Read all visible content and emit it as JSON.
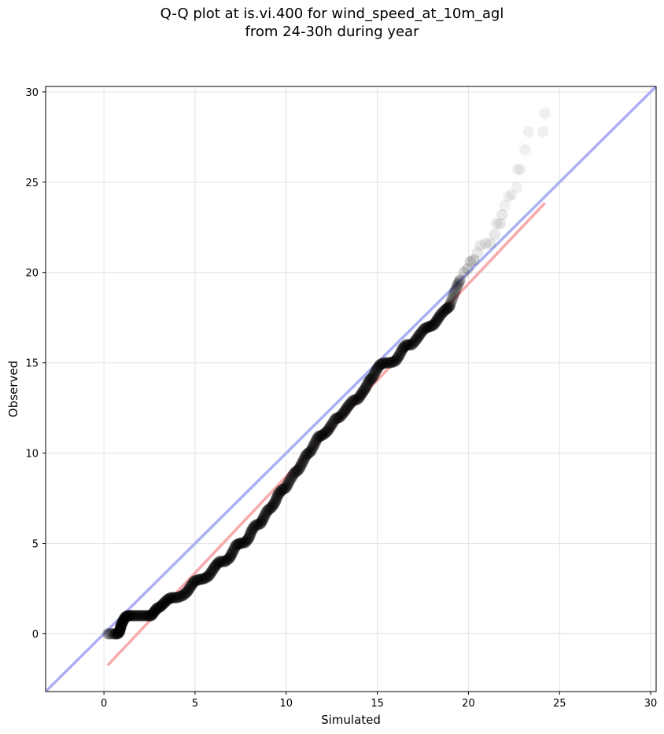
{
  "chart_data": {
    "type": "scatter",
    "title_line1": "Q-Q plot at is.vi.400 for wind_speed_at_10m_agl",
    "title_line2": "from 24-30h during year",
    "xlabel": "Simulated",
    "ylabel": "Observed",
    "xlim": [
      -3.2,
      30.3
    ],
    "ylim": [
      -3.2,
      30.3
    ],
    "xticks": [
      0,
      5,
      10,
      15,
      20,
      25,
      30
    ],
    "yticks": [
      0,
      5,
      10,
      15,
      20,
      25,
      30
    ],
    "grid": true,
    "reference_line": {
      "name": "1:1",
      "color": "#aab0f2",
      "from": [
        -3.2,
        -3.2
      ],
      "to": [
        30.3,
        30.3
      ]
    },
    "fit_line": {
      "name": "fit",
      "color": "#f7aaaa",
      "from": [
        0.2,
        -1.75
      ],
      "to": [
        24.2,
        23.85
      ]
    },
    "point_color": "#000000",
    "points": [
      [
        0.2,
        0.0
      ],
      [
        0.35,
        0.0
      ],
      [
        0.55,
        0.0
      ],
      [
        0.75,
        0.0
      ],
      [
        0.85,
        0.1
      ],
      [
        0.9,
        0.3
      ],
      [
        0.95,
        0.5
      ],
      [
        1.05,
        0.7
      ],
      [
        1.15,
        0.9
      ],
      [
        1.3,
        1.0
      ],
      [
        1.5,
        1.0
      ],
      [
        1.8,
        1.0
      ],
      [
        2.1,
        1.0
      ],
      [
        2.4,
        1.0
      ],
      [
        2.6,
        1.0
      ],
      [
        2.75,
        1.2
      ],
      [
        2.9,
        1.4
      ],
      [
        3.1,
        1.5
      ],
      [
        3.3,
        1.7
      ],
      [
        3.5,
        1.9
      ],
      [
        3.7,
        2.0
      ],
      [
        4.0,
        2.0
      ],
      [
        4.3,
        2.1
      ],
      [
        4.55,
        2.3
      ],
      [
        4.75,
        2.6
      ],
      [
        4.95,
        2.9
      ],
      [
        5.2,
        3.0
      ],
      [
        5.5,
        3.05
      ],
      [
        5.75,
        3.2
      ],
      [
        5.95,
        3.5
      ],
      [
        6.15,
        3.8
      ],
      [
        6.35,
        4.0
      ],
      [
        6.65,
        4.0
      ],
      [
        6.9,
        4.2
      ],
      [
        7.05,
        4.5
      ],
      [
        7.25,
        4.9
      ],
      [
        7.45,
        5.0
      ],
      [
        7.75,
        5.05
      ],
      [
        7.95,
        5.3
      ],
      [
        8.1,
        5.7
      ],
      [
        8.3,
        6.0
      ],
      [
        8.6,
        6.1
      ],
      [
        8.75,
        6.4
      ],
      [
        8.95,
        6.8
      ],
      [
        9.2,
        7.0
      ],
      [
        9.4,
        7.3
      ],
      [
        9.55,
        7.7
      ],
      [
        9.75,
        7.95
      ],
      [
        10.0,
        8.1
      ],
      [
        10.2,
        8.5
      ],
      [
        10.45,
        8.9
      ],
      [
        10.7,
        9.1
      ],
      [
        10.9,
        9.5
      ],
      [
        11.1,
        9.9
      ],
      [
        11.35,
        10.1
      ],
      [
        11.55,
        10.5
      ],
      [
        11.75,
        10.9
      ],
      [
        12.0,
        11.0
      ],
      [
        12.25,
        11.2
      ],
      [
        12.45,
        11.5
      ],
      [
        12.7,
        11.9
      ],
      [
        12.95,
        12.0
      ],
      [
        13.2,
        12.3
      ],
      [
        13.4,
        12.6
      ],
      [
        13.65,
        12.9
      ],
      [
        13.95,
        13.0
      ],
      [
        14.15,
        13.3
      ],
      [
        14.35,
        13.6
      ],
      [
        14.55,
        14.0
      ],
      [
        14.75,
        14.2
      ],
      [
        14.95,
        14.6
      ],
      [
        15.15,
        14.9
      ],
      [
        15.4,
        15.0
      ],
      [
        15.7,
        15.0
      ],
      [
        16.0,
        15.1
      ],
      [
        16.2,
        15.4
      ],
      [
        16.4,
        15.8
      ],
      [
        16.6,
        16.0
      ],
      [
        16.9,
        16.0
      ],
      [
        17.15,
        16.3
      ],
      [
        17.35,
        16.6
      ],
      [
        17.6,
        16.9
      ],
      [
        17.85,
        17.0
      ],
      [
        18.1,
        17.1
      ],
      [
        18.3,
        17.4
      ],
      [
        18.5,
        17.7
      ],
      [
        18.75,
        17.95
      ],
      [
        18.95,
        18.1
      ],
      [
        19.1,
        18.5
      ],
      [
        19.25,
        18.9
      ],
      [
        19.4,
        19.3
      ],
      [
        19.55,
        19.6
      ],
      [
        19.75,
        20.0
      ],
      [
        19.95,
        20.2
      ],
      [
        20.1,
        20.6
      ],
      [
        20.3,
        20.7
      ],
      [
        20.5,
        21.1
      ],
      [
        20.65,
        21.5
      ],
      [
        20.95,
        21.6
      ],
      [
        21.2,
        21.6
      ],
      [
        21.45,
        22.1
      ],
      [
        21.55,
        22.7
      ],
      [
        21.75,
        22.7
      ],
      [
        21.85,
        23.2
      ],
      [
        22.0,
        23.7
      ],
      [
        22.2,
        24.2
      ],
      [
        22.35,
        24.3
      ],
      [
        22.65,
        24.7
      ],
      [
        22.7,
        25.7
      ],
      [
        22.85,
        25.7
      ],
      [
        23.1,
        26.8
      ],
      [
        23.3,
        27.8
      ],
      [
        24.1,
        27.8
      ],
      [
        24.2,
        28.8
      ]
    ]
  }
}
